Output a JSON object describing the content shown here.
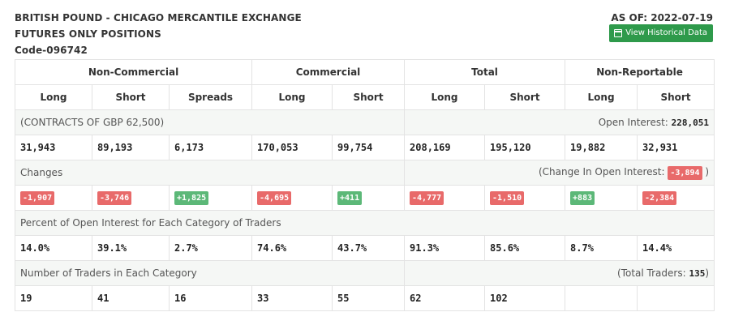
{
  "header": {
    "title_line1": "BRITISH POUND - CHICAGO MERCANTILE EXCHANGE",
    "title_line2": "FUTURES ONLY POSITIONS",
    "code": "Code-096742",
    "as_of": "AS OF: 2022-07-19",
    "historical_button": "View Historical Data"
  },
  "groups": {
    "non_commercial": "Non-Commercial",
    "commercial": "Commercial",
    "total": "Total",
    "non_reportable": "Non-Reportable"
  },
  "subheaders": [
    "Long",
    "Short",
    "Spreads",
    "Long",
    "Short",
    "Long",
    "Short",
    "Long",
    "Short"
  ],
  "contracts": {
    "label": "(CONTRACTS OF GBP 62,500)",
    "open_interest_label": "Open Interest:",
    "open_interest_value": "228,051",
    "values": [
      "31,943",
      "89,193",
      "6,173",
      "170,053",
      "99,754",
      "208,169",
      "195,120",
      "19,882",
      "32,931"
    ]
  },
  "changes": {
    "label": "Changes",
    "oi_change_prefix": "(Change In Open Interest:",
    "oi_change_value": "-3,894",
    "oi_change_suffix": ")",
    "values": [
      "-1,907",
      "-3,746",
      "+1,825",
      "-4,695",
      "+411",
      "-4,777",
      "-1,510",
      "+883",
      "-2,384"
    ]
  },
  "percent": {
    "label": "Percent of Open Interest for Each Category of Traders",
    "values": [
      "14.0%",
      "39.1%",
      "2.7%",
      "74.6%",
      "43.7%",
      "91.3%",
      "85.6%",
      "8.7%",
      "14.4%"
    ]
  },
  "traders": {
    "label": "Number of Traders in Each Category",
    "total_prefix": "(Total Traders:",
    "total_value": "135",
    "total_suffix": ")",
    "values": [
      "19",
      "41",
      "16",
      "33",
      "55",
      "62",
      "102",
      "",
      ""
    ]
  },
  "colors": {
    "negative": "#e86a6a",
    "positive": "#5cb878",
    "button": "#2e9a4b"
  }
}
